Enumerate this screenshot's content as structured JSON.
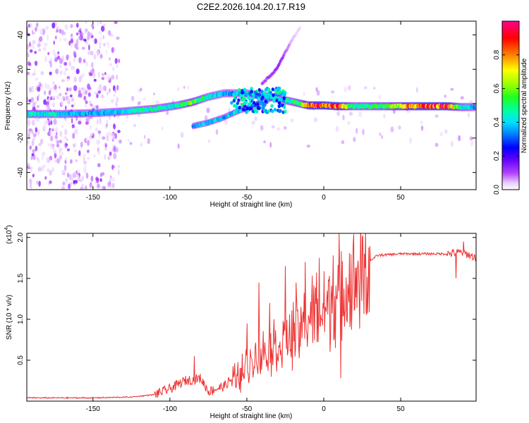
{
  "figure": {
    "title": "C2E2.2026.104.20.17.R19"
  },
  "chart_data": [
    {
      "type": "heatmap",
      "name": "spectrogram",
      "xlabel": "Height of straight line (km)",
      "ylabel": "Frequency (Hz)",
      "xlim": [
        -193,
        99
      ],
      "ylim": [
        -50,
        48
      ],
      "xticks": [
        -150,
        -100,
        -50,
        0,
        50
      ],
      "yticks": [
        -40,
        -20,
        0,
        20,
        40
      ],
      "colorbar": {
        "label": "Normalized spectral amplitude",
        "range": [
          0,
          1
        ],
        "ticks": [
          "0.0",
          "0.2",
          "0.4",
          "0.6",
          "0.8"
        ],
        "tick_values": [
          0.0,
          0.2,
          0.4,
          0.6,
          0.8
        ],
        "colors": [
          "#ffffff",
          "#e0c0ff",
          "#a000ff",
          "#4000ff",
          "#0000ff",
          "#00a0ff",
          "#00ffff",
          "#00ff60",
          "#80ff00",
          "#ffff00",
          "#ff8000",
          "#ff0000",
          "#ff0080"
        ]
      },
      "ridge_main": [
        {
          "x": -193,
          "f": -6,
          "a": 0.5
        },
        {
          "x": -170,
          "f": -6,
          "a": 0.45
        },
        {
          "x": -150,
          "f": -5.5,
          "a": 0.4
        },
        {
          "x": -130,
          "f": -4.5,
          "a": 0.45
        },
        {
          "x": -110,
          "f": -3,
          "a": 0.5
        },
        {
          "x": -95,
          "f": -1,
          "a": 0.5
        },
        {
          "x": -85,
          "f": 1,
          "a": 0.65
        },
        {
          "x": -75,
          "f": 4,
          "a": 0.45
        },
        {
          "x": -65,
          "f": 6,
          "a": 0.4
        },
        {
          "x": -50,
          "f": 6,
          "a": 0.4
        },
        {
          "x": -35,
          "f": 4,
          "a": 0.45
        },
        {
          "x": -25,
          "f": 2,
          "a": 0.5
        },
        {
          "x": -15,
          "f": 0,
          "a": 0.6
        },
        {
          "x": -10,
          "f": -1,
          "a": 0.9
        },
        {
          "x": 0,
          "f": -1,
          "a": 0.95
        },
        {
          "x": 10,
          "f": -1.5,
          "a": 0.9
        },
        {
          "x": 20,
          "f": -1.5,
          "a": 0.5
        },
        {
          "x": 40,
          "f": -1.5,
          "a": 0.6
        },
        {
          "x": 60,
          "f": -1.5,
          "a": 0.9
        },
        {
          "x": 80,
          "f": -1.5,
          "a": 0.95
        },
        {
          "x": 90,
          "f": -2,
          "a": 0.5
        },
        {
          "x": 99,
          "f": -2,
          "a": 0.4
        }
      ],
      "ridge_branch_lower": [
        {
          "x": -85,
          "f": -13,
          "a": 0.4
        },
        {
          "x": -75,
          "f": -11,
          "a": 0.45
        },
        {
          "x": -65,
          "f": -8,
          "a": 0.4
        },
        {
          "x": -55,
          "f": -4,
          "a": 0.45
        },
        {
          "x": -45,
          "f": -1,
          "a": 0.4
        },
        {
          "x": -35,
          "f": 3,
          "a": 0.45
        },
        {
          "x": -28,
          "f": 6,
          "a": 0.4
        }
      ],
      "ridge_branch_upper": [
        {
          "x": -40,
          "f": 12,
          "a": 0.1
        },
        {
          "x": -35,
          "f": 16,
          "a": 0.12
        },
        {
          "x": -30,
          "f": 21,
          "a": 0.15
        },
        {
          "x": -25,
          "f": 30,
          "a": 0.1
        },
        {
          "x": -20,
          "f": 38,
          "a": 0.05
        },
        {
          "x": -15,
          "f": 45,
          "a": 0.03
        }
      ]
    },
    {
      "type": "line",
      "name": "snr",
      "xlabel": "Height of straight line (km)",
      "ylabel": "SNR (10 * v/v)",
      "multiplier": "(x10",
      "multiplier_exp": "4",
      "multiplier_close": ")",
      "xlim": [
        -193,
        99
      ],
      "ylim": [
        0,
        2.05
      ],
      "xticks": [
        -150,
        -100,
        -50,
        0,
        50
      ],
      "yticks": [
        0.5,
        1.0,
        1.5,
        2.0
      ],
      "ytick_labels": [
        "0.5",
        "1.0",
        "1.5",
        "2.0"
      ],
      "color": "#ee3333",
      "series_outline": [
        {
          "x": -193,
          "y": 0.04
        },
        {
          "x": -150,
          "y": 0.04
        },
        {
          "x": -125,
          "y": 0.05
        },
        {
          "x": -110,
          "y": 0.08
        },
        {
          "x": -100,
          "y": 0.15
        },
        {
          "x": -90,
          "y": 0.25
        },
        {
          "x": -80,
          "y": 0.28
        },
        {
          "x": -75,
          "y": 0.12
        },
        {
          "x": -65,
          "y": 0.18
        },
        {
          "x": -55,
          "y": 0.35
        },
        {
          "x": -45,
          "y": 0.55
        },
        {
          "x": -35,
          "y": 0.7
        },
        {
          "x": -25,
          "y": 0.8
        },
        {
          "x": -15,
          "y": 0.95
        },
        {
          "x": -5,
          "y": 1.2
        },
        {
          "x": 5,
          "y": 1.3
        },
        {
          "x": 15,
          "y": 1.5
        },
        {
          "x": 25,
          "y": 1.65
        },
        {
          "x": 35,
          "y": 1.78
        },
        {
          "x": 50,
          "y": 1.8
        },
        {
          "x": 65,
          "y": 1.8
        },
        {
          "x": 80,
          "y": 1.8
        },
        {
          "x": 90,
          "y": 1.82
        },
        {
          "x": 99,
          "y": 1.75
        }
      ],
      "spikes": [
        {
          "x": -84,
          "y": 0.55
        },
        {
          "x": -50,
          "y": 0.95
        },
        {
          "x": -42,
          "y": 1.45
        },
        {
          "x": -35,
          "y": 1.2
        },
        {
          "x": -25,
          "y": 1.65
        },
        {
          "x": -18,
          "y": 1.45
        },
        {
          "x": -12,
          "y": 1.7
        },
        {
          "x": -3,
          "y": 1.75
        },
        {
          "x": 6,
          "y": 1.78
        },
        {
          "x": 10,
          "y": 2.05
        },
        {
          "x": 91,
          "y": 1.95
        }
      ],
      "dips": [
        {
          "x": 11,
          "y": 0.28
        },
        {
          "x": 4,
          "y": 0.6
        },
        {
          "x": 86,
          "y": 1.5
        }
      ]
    }
  ]
}
